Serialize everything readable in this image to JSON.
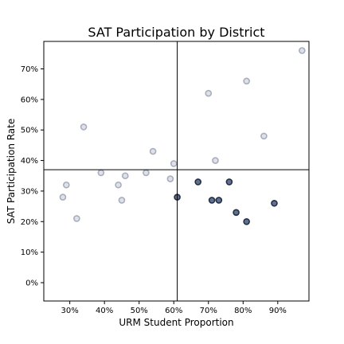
{
  "chart_data": {
    "type": "scatter",
    "title": "SAT Participation by District",
    "xlabel": "URM Student Proportion",
    "ylabel": "SAT Participation Rate",
    "xlim": [
      0.225,
      0.99
    ],
    "ylim": [
      -0.06,
      0.79
    ],
    "x_ticks": [
      0.3,
      0.4,
      0.5,
      0.6,
      0.7,
      0.8,
      0.9
    ],
    "x_tick_labels": [
      "30%",
      "40%",
      "50%",
      "60%",
      "70%",
      "80%",
      "90%"
    ],
    "y_ticks": [
      0.0,
      0.1,
      0.2,
      0.3,
      0.4,
      0.5,
      0.6,
      0.7
    ],
    "y_tick_labels": [
      "0%",
      "10%",
      "20%",
      "30%",
      "40%",
      "50%",
      "60%",
      "70%"
    ],
    "reference_lines": {
      "x": 0.61,
      "y": 0.37
    },
    "grid": false,
    "colors": {
      "muted_fill": "#dde1ea",
      "muted_edge": "#a9adbc",
      "highlight_fill": "#5f7290",
      "highlight_edge": "#262f44"
    },
    "series": [
      {
        "style": "muted",
        "points": [
          {
            "x": 0.28,
            "y": 0.28
          },
          {
            "x": 0.29,
            "y": 0.32
          },
          {
            "x": 0.32,
            "y": 0.21
          },
          {
            "x": 0.34,
            "y": 0.51
          },
          {
            "x": 0.39,
            "y": 0.36
          },
          {
            "x": 0.44,
            "y": 0.32
          },
          {
            "x": 0.45,
            "y": 0.27
          },
          {
            "x": 0.46,
            "y": 0.35
          },
          {
            "x": 0.52,
            "y": 0.36
          },
          {
            "x": 0.54,
            "y": 0.43
          },
          {
            "x": 0.59,
            "y": 0.34
          },
          {
            "x": 0.6,
            "y": 0.39
          },
          {
            "x": 0.7,
            "y": 0.62
          },
          {
            "x": 0.72,
            "y": 0.4
          },
          {
            "x": 0.81,
            "y": 0.66
          },
          {
            "x": 0.86,
            "y": 0.48
          },
          {
            "x": 0.97,
            "y": 0.76
          }
        ]
      },
      {
        "style": "highlight",
        "points": [
          {
            "x": 0.61,
            "y": 0.28
          },
          {
            "x": 0.67,
            "y": 0.33
          },
          {
            "x": 0.71,
            "y": 0.27
          },
          {
            "x": 0.73,
            "y": 0.27
          },
          {
            "x": 0.76,
            "y": 0.33
          },
          {
            "x": 0.78,
            "y": 0.23
          },
          {
            "x": 0.81,
            "y": 0.2
          },
          {
            "x": 0.89,
            "y": 0.26
          }
        ]
      }
    ]
  }
}
